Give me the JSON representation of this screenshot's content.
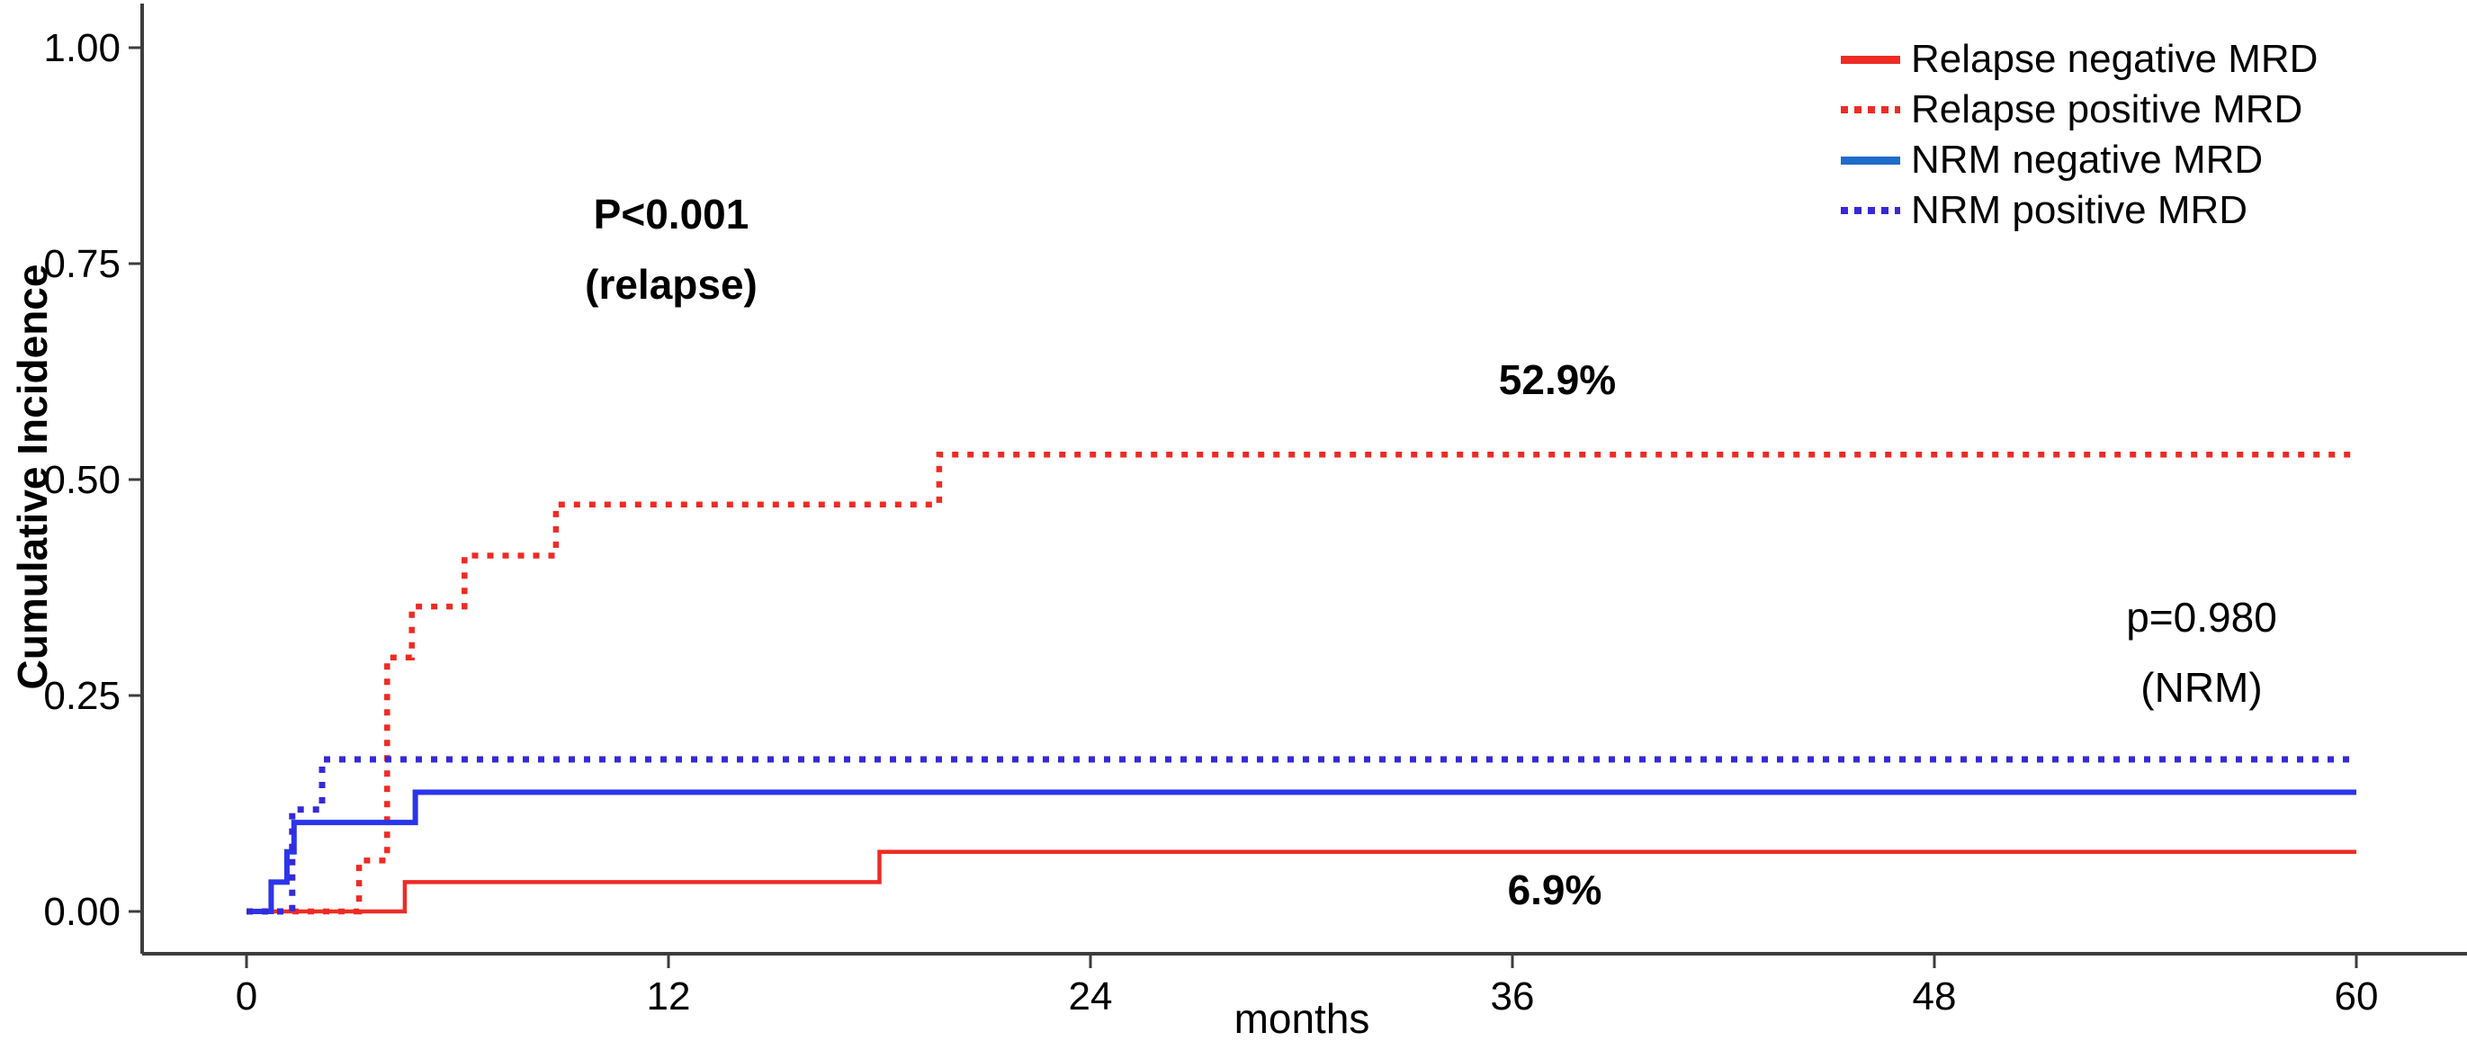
{
  "colors": {
    "axis": "#3d3d3d",
    "tick_label": "#000000",
    "relapse_red": "#ee2b24",
    "nrm_blue_plot": "#2b35ea",
    "nrm_blue_dotted": "#3629d8",
    "legend_blue_solid": "#1f6cc9"
  },
  "legend": {
    "items": [
      {
        "label": "Relapse negative MRD",
        "color": "#ee2b24",
        "style": "solid"
      },
      {
        "label": "Relapse positive MRD",
        "color": "#ee2b24",
        "style": "dotted"
      },
      {
        "label": "NRM negative MRD",
        "color": "#1f6cc9",
        "style": "solid"
      },
      {
        "label": "NRM positive MRD",
        "color": "#3629d8",
        "style": "dotted"
      }
    ]
  },
  "chart_data": {
    "type": "line",
    "step": true,
    "title": "",
    "xlabel": "months",
    "ylabel": "Cumulative Incidence",
    "xlim": [
      0,
      60
    ],
    "ylim": [
      0,
      1
    ],
    "grid": false,
    "legend_position": "top-right",
    "xticks": {
      "values": [
        0,
        12,
        24,
        36,
        48,
        60
      ],
      "labels": [
        "0",
        "12",
        "24",
        "36",
        "48",
        "60"
      ]
    },
    "yticks": {
      "values": [
        0,
        0.25,
        0.5,
        0.75,
        1.0
      ],
      "labels": [
        "0.00",
        "0.25",
        "0.50",
        "0.75",
        "1.00"
      ]
    },
    "series": [
      {
        "name": "Relapse negative MRD",
        "color": "#ee2b24",
        "style": "solid",
        "width": 4.5,
        "points": [
          [
            0,
            0
          ],
          [
            4.5,
            0
          ],
          [
            4.5,
            0.034
          ],
          [
            18,
            0.034
          ],
          [
            18,
            0.069
          ],
          [
            60,
            0.069
          ]
        ],
        "final_value": 0.069
      },
      {
        "name": "Relapse positive MRD",
        "color": "#ee2b24",
        "style": "dotted",
        "width": 6.5,
        "points": [
          [
            0,
            0
          ],
          [
            3.2,
            0
          ],
          [
            3.2,
            0.059
          ],
          [
            4.0,
            0.059
          ],
          [
            4.0,
            0.294
          ],
          [
            4.7,
            0.294
          ],
          [
            4.7,
            0.353
          ],
          [
            6.2,
            0.353
          ],
          [
            6.2,
            0.412
          ],
          [
            8.8,
            0.412
          ],
          [
            8.8,
            0.471
          ],
          [
            19.7,
            0.471
          ],
          [
            19.7,
            0.529
          ],
          [
            60,
            0.529
          ]
        ],
        "final_value": 0.529
      },
      {
        "name": "NRM negative MRD",
        "color": "#2b35ea",
        "style": "solid",
        "width": 6,
        "points": [
          [
            0,
            0
          ],
          [
            0.7,
            0
          ],
          [
            0.7,
            0.034
          ],
          [
            1.15,
            0.034
          ],
          [
            1.15,
            0.069
          ],
          [
            1.35,
            0.069
          ],
          [
            1.35,
            0.103
          ],
          [
            4.8,
            0.103
          ],
          [
            4.8,
            0.138
          ],
          [
            60,
            0.138
          ]
        ],
        "final_value": 0.138
      },
      {
        "name": "NRM positive MRD",
        "color": "#3629d8",
        "style": "dotted",
        "width": 7,
        "points": [
          [
            0,
            0
          ],
          [
            1.3,
            0
          ],
          [
            1.3,
            0.118
          ],
          [
            2.15,
            0.118
          ],
          [
            2.15,
            0.176
          ],
          [
            60,
            0.176
          ]
        ],
        "final_value": 0.176
      }
    ],
    "annotations": {
      "relapse_p": {
        "line1": "P<0.001",
        "line2": "(relapse)"
      },
      "high_pct": "52.9%",
      "nrm_p": {
        "line1": "p=0.980",
        "line2": "(NRM)"
      },
      "low_pct": "6.9%"
    }
  }
}
